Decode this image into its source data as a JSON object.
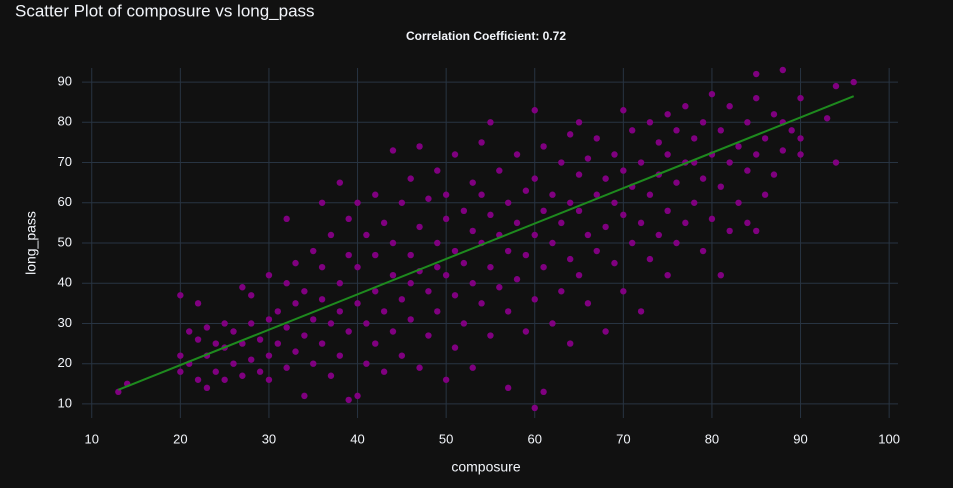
{
  "chart_data": {
    "type": "scatter",
    "title": "Scatter Plot of composure vs long_pass",
    "subtitle": "Correlation Coefficient: 0.72",
    "x_label": "composure",
    "y_label": "long_pass",
    "xlim": [
      8.9,
      101
    ],
    "ylim": [
      6.5,
      93.5
    ],
    "xticks": [
      10,
      20,
      30,
      40,
      50,
      60,
      70,
      80,
      90,
      100
    ],
    "yticks": [
      10,
      20,
      30,
      40,
      50,
      60,
      70,
      80,
      90
    ],
    "grid": true,
    "series": [
      {
        "mode": "markers",
        "color": "#800080",
        "x": [
          13,
          14,
          20,
          20,
          20,
          21,
          21,
          22,
          22,
          22,
          23,
          23,
          23,
          24,
          24,
          25,
          25,
          25,
          26,
          26,
          27,
          27,
          27,
          28,
          28,
          28,
          29,
          29,
          30,
          30,
          30,
          30,
          31,
          31,
          32,
          32,
          32,
          32,
          33,
          33,
          33,
          34,
          34,
          34,
          35,
          35,
          35,
          36,
          36,
          36,
          36,
          37,
          37,
          37,
          38,
          38,
          38,
          38,
          39,
          39,
          39,
          39,
          40,
          40,
          40,
          40,
          41,
          41,
          41,
          42,
          42,
          42,
          42,
          43,
          43,
          43,
          44,
          44,
          44,
          44,
          45,
          45,
          45,
          46,
          46,
          46,
          46,
          47,
          47,
          47,
          47,
          48,
          48,
          48,
          49,
          49,
          49,
          49,
          50,
          50,
          50,
          50,
          51,
          51,
          51,
          51,
          52,
          52,
          52,
          53,
          53,
          53,
          53,
          54,
          54,
          54,
          54,
          55,
          55,
          55,
          55,
          56,
          56,
          56,
          57,
          57,
          57,
          57,
          58,
          58,
          58,
          59,
          59,
          59,
          60,
          60,
          60,
          60,
          60,
          61,
          61,
          61,
          61,
          62,
          62,
          62,
          63,
          63,
          63,
          64,
          64,
          64,
          64,
          65,
          65,
          65,
          65,
          66,
          66,
          66,
          67,
          67,
          67,
          68,
          68,
          68,
          69,
          69,
          69,
          70,
          70,
          70,
          70,
          71,
          71,
          71,
          72,
          72,
          72,
          73,
          73,
          73,
          74,
          74,
          74,
          75,
          75,
          75,
          75,
          76,
          76,
          76,
          77,
          77,
          77,
          78,
          78,
          78,
          79,
          79,
          79,
          80,
          80,
          80,
          81,
          81,
          81,
          82,
          82,
          82,
          83,
          83,
          84,
          84,
          84,
          85,
          85,
          85,
          85,
          86,
          86,
          87,
          87,
          88,
          88,
          88,
          89,
          90,
          90,
          90,
          93,
          94,
          94,
          96
        ],
        "values": [
          13,
          15,
          37,
          22,
          18,
          20,
          28,
          35,
          16,
          26,
          14,
          22,
          29,
          18,
          25,
          16,
          24,
          30,
          20,
          28,
          39,
          17,
          25,
          37,
          21,
          30,
          18,
          26,
          42,
          22,
          31,
          16,
          25,
          33,
          56,
          19,
          29,
          40,
          23,
          35,
          45,
          12,
          27,
          38,
          20,
          31,
          48,
          60,
          25,
          36,
          44,
          17,
          30,
          52,
          65,
          22,
          40,
          33,
          11,
          28,
          47,
          56,
          12,
          35,
          44,
          60,
          20,
          30,
          52,
          25,
          38,
          62,
          47,
          18,
          33,
          55,
          73,
          28,
          42,
          50,
          22,
          36,
          60,
          31,
          47,
          66,
          40,
          74,
          19,
          54,
          43,
          27,
          38,
          61,
          33,
          50,
          68,
          44,
          16,
          42,
          56,
          62,
          24,
          37,
          48,
          72,
          30,
          45,
          58,
          19,
          40,
          53,
          65,
          35,
          50,
          62,
          75,
          80,
          27,
          44,
          57,
          39,
          52,
          68,
          14,
          33,
          48,
          60,
          41,
          55,
          72,
          28,
          47,
          63,
          83,
          9,
          36,
          52,
          66,
          13,
          44,
          58,
          74,
          30,
          50,
          62,
          38,
          55,
          70,
          25,
          46,
          60,
          77,
          80,
          42,
          58,
          67,
          35,
          52,
          71,
          48,
          62,
          76,
          28,
          54,
          66,
          45,
          60,
          72,
          83,
          38,
          57,
          68,
          50,
          64,
          78,
          33,
          55,
          70,
          46,
          62,
          80,
          52,
          67,
          75,
          42,
          58,
          72,
          82,
          50,
          65,
          78,
          55,
          70,
          84,
          70,
          60,
          76,
          48,
          66,
          80,
          87,
          56,
          72,
          42,
          64,
          78,
          53,
          70,
          84,
          60,
          74,
          55,
          68,
          80,
          92,
          53,
          72,
          86,
          62,
          76,
          67,
          82,
          93,
          73,
          80,
          78,
          86,
          72,
          76,
          81,
          70,
          89,
          90
        ]
      },
      {
        "mode": "lines",
        "color": "#1e8a1e",
        "x": [
          13,
          96
        ],
        "values": [
          13.5,
          86.5
        ]
      }
    ]
  }
}
